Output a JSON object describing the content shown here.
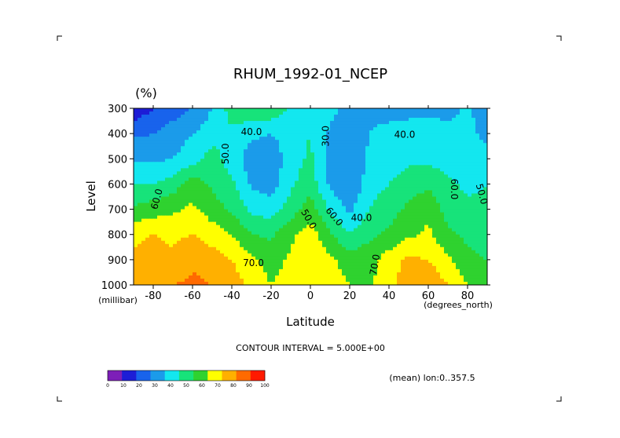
{
  "chart_data": {
    "type": "heatmap",
    "title": "RHUM_1992-01_NCEP",
    "unit": "(%)",
    "xlabel": "Latitude",
    "ylabel": "Level",
    "x_units": "(degrees_north)",
    "y_units": "(millibar)",
    "xlim": [
      -90,
      90
    ],
    "ylim": [
      1000,
      300
    ],
    "x_ticks": [
      "-80",
      "-60",
      "-40",
      "-20",
      "0",
      "20",
      "40",
      "60",
      "80"
    ],
    "x_tick_values": [
      -80,
      -60,
      -40,
      -20,
      0,
      20,
      40,
      60,
      80
    ],
    "y_ticks": [
      "300",
      "400",
      "500",
      "600",
      "700",
      "800",
      "900",
      "1000"
    ],
    "y_tick_values": [
      300,
      400,
      500,
      600,
      700,
      800,
      900,
      1000
    ],
    "contour_interval_text": "CONTOUR INTERVAL = 5.000E+00",
    "mean_text": "(mean) lon:0..357.5",
    "levels_latitudes": [
      -90,
      -80,
      -70,
      -60,
      -50,
      -40,
      -30,
      -20,
      -10,
      0,
      10,
      20,
      30,
      40,
      50,
      60,
      70,
      80,
      90
    ],
    "levels_pressure": [
      300,
      400,
      500,
      600,
      700,
      800,
      900,
      1000
    ],
    "rhum_grid": [
      [
        12,
        20,
        25,
        30,
        40,
        55,
        58,
        58,
        48,
        45,
        44,
        35,
        38,
        36,
        36,
        38,
        35,
        42,
        34
      ],
      [
        28,
        30,
        35,
        40,
        45,
        48,
        42,
        40,
        45,
        50,
        38,
        33,
        40,
        43,
        45,
        44,
        45,
        42,
        38
      ],
      [
        38,
        38,
        40,
        45,
        55,
        45,
        35,
        33,
        45,
        52,
        35,
        30,
        42,
        45,
        48,
        48,
        45,
        45,
        42
      ],
      [
        50,
        50,
        55,
        65,
        58,
        52,
        38,
        35,
        48,
        56,
        38,
        30,
        46,
        50,
        55,
        58,
        52,
        48,
        50
      ],
      [
        62,
        65,
        68,
        72,
        65,
        58,
        48,
        45,
        55,
        65,
        48,
        38,
        50,
        56,
        62,
        68,
        55,
        52,
        52
      ],
      [
        78,
        80,
        78,
        80,
        75,
        70,
        60,
        58,
        68,
        75,
        62,
        50,
        58,
        62,
        68,
        72,
        62,
        58,
        55
      ],
      [
        82,
        85,
        82,
        88,
        85,
        80,
        72,
        65,
        72,
        80,
        72,
        65,
        66,
        75,
        82,
        80,
        72,
        62,
        60
      ],
      [
        80,
        85,
        90,
        92,
        90,
        85,
        78,
        70,
        75,
        78,
        75,
        70,
        68,
        78,
        85,
        88,
        80,
        70,
        65
      ]
    ],
    "contour_labels": [
      "50.0",
      "40.0",
      "30.0",
      "40.0",
      "60.0",
      "50.0",
      "60.0",
      "40.0",
      "60.0",
      "50.0",
      "70.0",
      "70.0"
    ],
    "colorbar": {
      "ticks": [
        "0",
        "10",
        "20",
        "30",
        "40",
        "50",
        "60",
        "70",
        "80",
        "90",
        "100"
      ],
      "colors": [
        "#7d1fb8",
        "#1d1dd6",
        "#1863ec",
        "#1b9bea",
        "#13e7ef",
        "#17e37a",
        "#2fd22f",
        "#ffff00",
        "#ffb000",
        "#ff6a00",
        "#ff1a00"
      ]
    }
  }
}
